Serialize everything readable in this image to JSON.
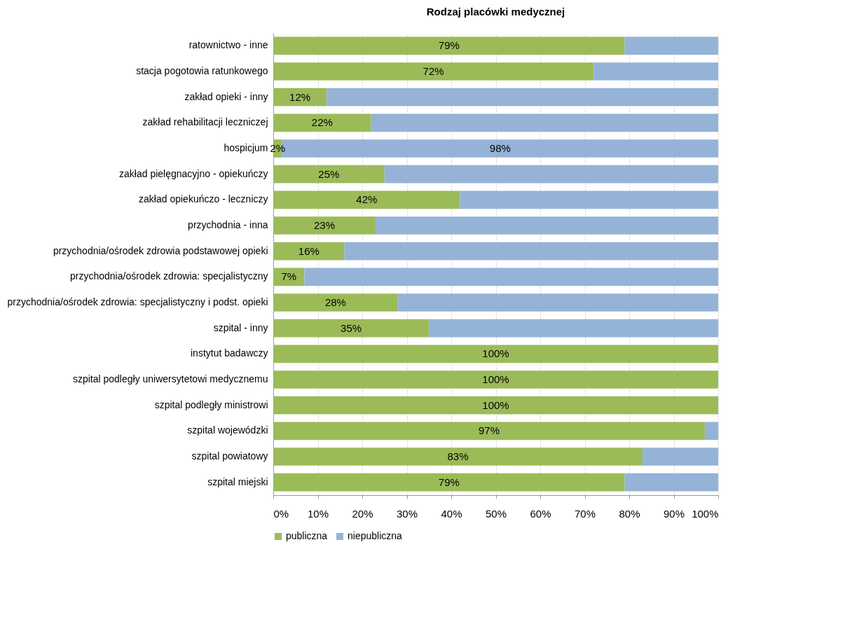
{
  "chart_data": {
    "type": "bar",
    "orientation": "horizontal",
    "stacked": true,
    "title": "Rodzaj placówki medycznej",
    "categories": [
      "ratownictwo - inne",
      "stacja pogotowia ratunkowego",
      "zakład opieki - inny",
      "zakład rehabilitacji leczniczej",
      "hospicjum",
      "zakład pielęgnacyjno - opiekuńczy",
      "zakład opiekuńczo - leczniczy",
      "przychodnia - inna",
      "przychodnia/ośrodek zdrowia podstawowej opieki",
      "przychodnia/ośrodek zdrowia: specjalistyczny",
      "przychodnia/ośrodek zdrowia: specjalistyczny i podst. opieki",
      "szpital - inny",
      "instytut badawczy",
      "szpital podległy uniwersytetowi medycznemu",
      "szpital podległy ministrowi",
      "szpital wojewódzki",
      "szpital powiatowy",
      "szpital miejski"
    ],
    "series": [
      {
        "name": "publiczna",
        "color": "#9bbb59",
        "values": [
          79,
          72,
          12,
          22,
          2,
          25,
          42,
          23,
          16,
          7,
          28,
          35,
          100,
          100,
          100,
          97,
          83,
          79
        ],
        "value_labels": [
          "79%",
          "72%",
          "12%",
          "22%",
          "2%",
          "25%",
          "42%",
          "23%",
          "16%",
          "7%",
          "28%",
          "35%",
          "100%",
          "100%",
          "100%",
          "97%",
          "83%",
          "79%"
        ]
      },
      {
        "name": "niepubliczna",
        "color": "#95b3d7",
        "values": [
          21,
          28,
          88,
          78,
          98,
          75,
          58,
          77,
          84,
          93,
          72,
          65,
          0,
          0,
          0,
          3,
          17,
          21
        ],
        "value_labels": [
          null,
          null,
          null,
          null,
          "98%",
          null,
          null,
          null,
          null,
          null,
          null,
          null,
          null,
          null,
          null,
          null,
          null,
          null
        ]
      }
    ],
    "xlim": [
      0,
      100
    ],
    "xticks": [
      {
        "value": 0,
        "label": "0%"
      },
      {
        "value": 10,
        "label": "10%"
      },
      {
        "value": 20,
        "label": "20%"
      },
      {
        "value": 30,
        "label": "30%"
      },
      {
        "value": 40,
        "label": "40%"
      },
      {
        "value": 50,
        "label": "50%"
      },
      {
        "value": 60,
        "label": "60%"
      },
      {
        "value": 70,
        "label": "70%"
      },
      {
        "value": 80,
        "label": "80%"
      },
      {
        "value": 90,
        "label": "90%"
      },
      {
        "value": 100,
        "label": "100%"
      }
    ],
    "grid": "x",
    "legend": "bottom"
  }
}
